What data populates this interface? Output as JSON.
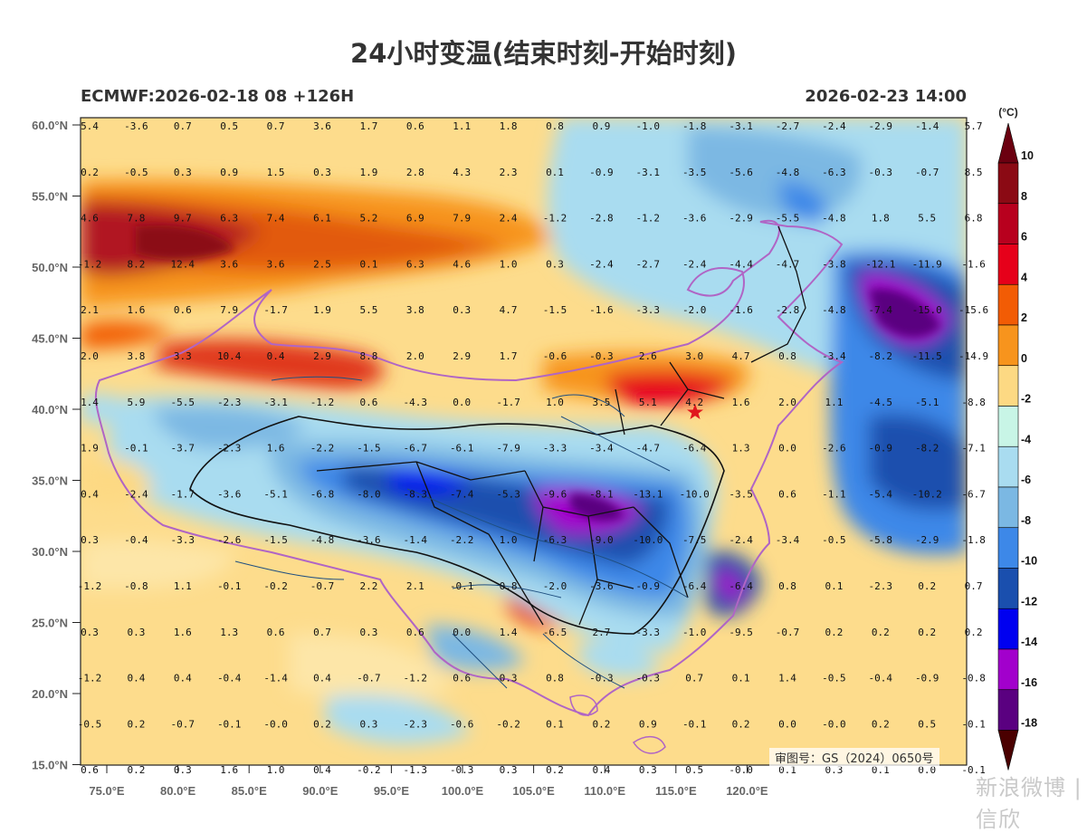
{
  "title": "24小时变温(结束时刻-开始时刻)",
  "subtitle_left": "ECMWF:2026-02-18 08 +126H",
  "subtitle_right": "2026-02-23 14:00",
  "approval_number": "审图号：GS（2024）0650号",
  "watermark": "新浪微博 | 信欣",
  "unit_label": "(°C)",
  "colors": {
    "bin_colors": [
      "#4a0000",
      "#8b0a14",
      "#b8001e",
      "#e6001a",
      "#f25c05",
      "#f7941d",
      "#fdd983",
      "#c8f5e6",
      "#a9dcf0",
      "#7bb8e3",
      "#3d88e8",
      "#1a4fae",
      "#0000f0",
      "#a200cc",
      "#5a0080",
      "#6b0010"
    ]
  },
  "map": {
    "lon_ticks": [
      "75.0°E",
      "80.0°E",
      "85.0°E",
      "90.0°E",
      "95.0°E",
      "100.0°E",
      "105.0°E",
      "110.0°E",
      "115.0°E",
      "120.0°E"
    ],
    "lat_ticks": [
      "60.0°N",
      "55.0°N",
      "50.0°N",
      "45.0°N",
      "40.0°N",
      "35.0°N",
      "30.0°N",
      "25.0°N",
      "20.0°N",
      "15.0°N"
    ],
    "grid_values": [
      [
        "5.4",
        "-3.6",
        "0.7",
        "0.5",
        "0.7",
        "3.6",
        "1.7",
        "0.6",
        "1.1",
        "1.8",
        "0.8",
        "0.9",
        "-1.0",
        "-1.8",
        "-3.1",
        "-2.7",
        "-2.4",
        "-2.9",
        "-1.4",
        "5.7"
      ],
      [
        "0.2",
        "-0.5",
        "0.3",
        "0.9",
        "1.5",
        "0.3",
        "1.9",
        "2.8",
        "4.3",
        "2.3",
        "0.1",
        "-0.9",
        "-3.1",
        "-3.5",
        "-5.6",
        "-4.8",
        "-6.3",
        "-0.3",
        "-0.7",
        "8.5"
      ],
      [
        "4.6",
        "7.8",
        "9.7",
        "6.3",
        "7.4",
        "6.1",
        "5.2",
        "6.9",
        "7.9",
        "2.4",
        "-1.2",
        "-2.8",
        "-1.2",
        "-3.6",
        "-2.9",
        "-5.5",
        "-4.8",
        "1.8",
        "5.5",
        "6.8"
      ],
      [
        "-1.2",
        "8.2",
        "12.4",
        "3.6",
        "3.6",
        "2.5",
        "0.1",
        "6.3",
        "4.6",
        "1.0",
        "0.3",
        "-2.4",
        "-2.7",
        "-2.4",
        "-4.4",
        "-4.7",
        "-3.8",
        "-12.1",
        "-11.9",
        "-1.6"
      ],
      [
        "2.1",
        "1.6",
        "0.6",
        "7.9",
        "-1.7",
        "1.9",
        "5.5",
        "3.8",
        "0.3",
        "4.7",
        "-1.5",
        "-1.6",
        "-3.3",
        "-2.0",
        "-1.6",
        "-2.8",
        "-4.8",
        "-7.4",
        "-15.0",
        "-15.6"
      ],
      [
        "2.0",
        "3.8",
        "3.3",
        "10.4",
        "0.4",
        "2.9",
        "8.8",
        "2.0",
        "2.9",
        "1.7",
        "-0.6",
        "-0.3",
        "2.6",
        "3.0",
        "4.7",
        "0.8",
        "-3.4",
        "-8.2",
        "-11.5",
        "-14.9"
      ],
      [
        "1.4",
        "5.9",
        "-5.5",
        "-2.3",
        "-3.1",
        "-1.2",
        "0.6",
        "-4.3",
        "0.0",
        "-1.7",
        "1.0",
        "3.5",
        "5.1",
        "4.2",
        "1.6",
        "2.0",
        "1.1",
        "-4.5",
        "-5.1",
        "-8.8"
      ],
      [
        "1.9",
        "-0.1",
        "-3.7",
        "-2.3",
        "1.6",
        "-2.2",
        "-1.5",
        "-6.7",
        "-6.1",
        "-7.9",
        "-3.3",
        "-3.4",
        "-4.7",
        "-6.4",
        "1.3",
        "0.0",
        "-2.6",
        "-0.9",
        "-8.2",
        "-7.1"
      ],
      [
        "0.4",
        "-2.4",
        "-1.7",
        "-3.6",
        "-5.1",
        "-6.8",
        "-8.0",
        "-8.3",
        "-7.4",
        "-5.3",
        "-9.6",
        "-8.1",
        "-13.1",
        "-10.0",
        "-3.5",
        "0.6",
        "-1.1",
        "-5.4",
        "-10.2",
        "-6.7"
      ],
      [
        "0.3",
        "-0.4",
        "-3.3",
        "-2.6",
        "-1.5",
        "-4.8",
        "-3.6",
        "-1.4",
        "-2.2",
        "1.0",
        "-6.3",
        "-9.0",
        "-10.0",
        "-7.5",
        "-2.4",
        "-3.4",
        "-0.5",
        "-5.8",
        "-2.9",
        "-1.8"
      ],
      [
        "-1.2",
        "-0.8",
        "1.1",
        "-0.1",
        "-0.2",
        "-0.7",
        "2.2",
        "2.1",
        "-0.1",
        "0.8",
        "-2.0",
        "-3.6",
        "-0.9",
        "-6.4",
        "-6.4",
        "0.8",
        "0.1",
        "-2.3",
        "0.2",
        "0.7"
      ],
      [
        "0.3",
        "0.3",
        "1.6",
        "1.3",
        "0.6",
        "0.7",
        "0.3",
        "0.6",
        "0.0",
        "1.4",
        "-6.5",
        "2.7",
        "-3.3",
        "-1.0",
        "-9.5",
        "-0.7",
        "0.2",
        "0.2",
        "0.2",
        "0.2"
      ],
      [
        "-1.2",
        "0.4",
        "0.4",
        "-0.4",
        "-1.4",
        "0.4",
        "-0.7",
        "-1.2",
        "0.6",
        "0.3",
        "0.8",
        "-0.3",
        "-0.3",
        "0.7",
        "0.1",
        "1.4",
        "-0.5",
        "-0.4",
        "-0.9",
        "-0.8"
      ],
      [
        "-0.5",
        "0.2",
        "-0.7",
        "-0.1",
        "-0.0",
        "0.2",
        "0.3",
        "-2.3",
        "-0.6",
        "-0.2",
        "0.1",
        "0.2",
        "0.9",
        "-0.1",
        "0.2",
        "0.0",
        "-0.0",
        "0.2",
        "0.5",
        "-0.1"
      ],
      [
        "0.6",
        "0.2",
        "0.3",
        "1.6",
        "1.0",
        "0.4",
        "-0.2",
        "-1.3",
        "-0.3",
        "0.3",
        "0.2",
        "0.4",
        "0.3",
        "0.5",
        "-0.0",
        "0.1",
        "0.3",
        "0.1",
        "0.0",
        "-0.1"
      ]
    ]
  },
  "colorbar": {
    "labels": [
      "10",
      "8",
      "6",
      "4",
      "2",
      "0",
      "-2",
      "-4",
      "-6",
      "-8",
      "-10",
      "-12",
      "-14",
      "-16",
      "-18"
    ]
  }
}
